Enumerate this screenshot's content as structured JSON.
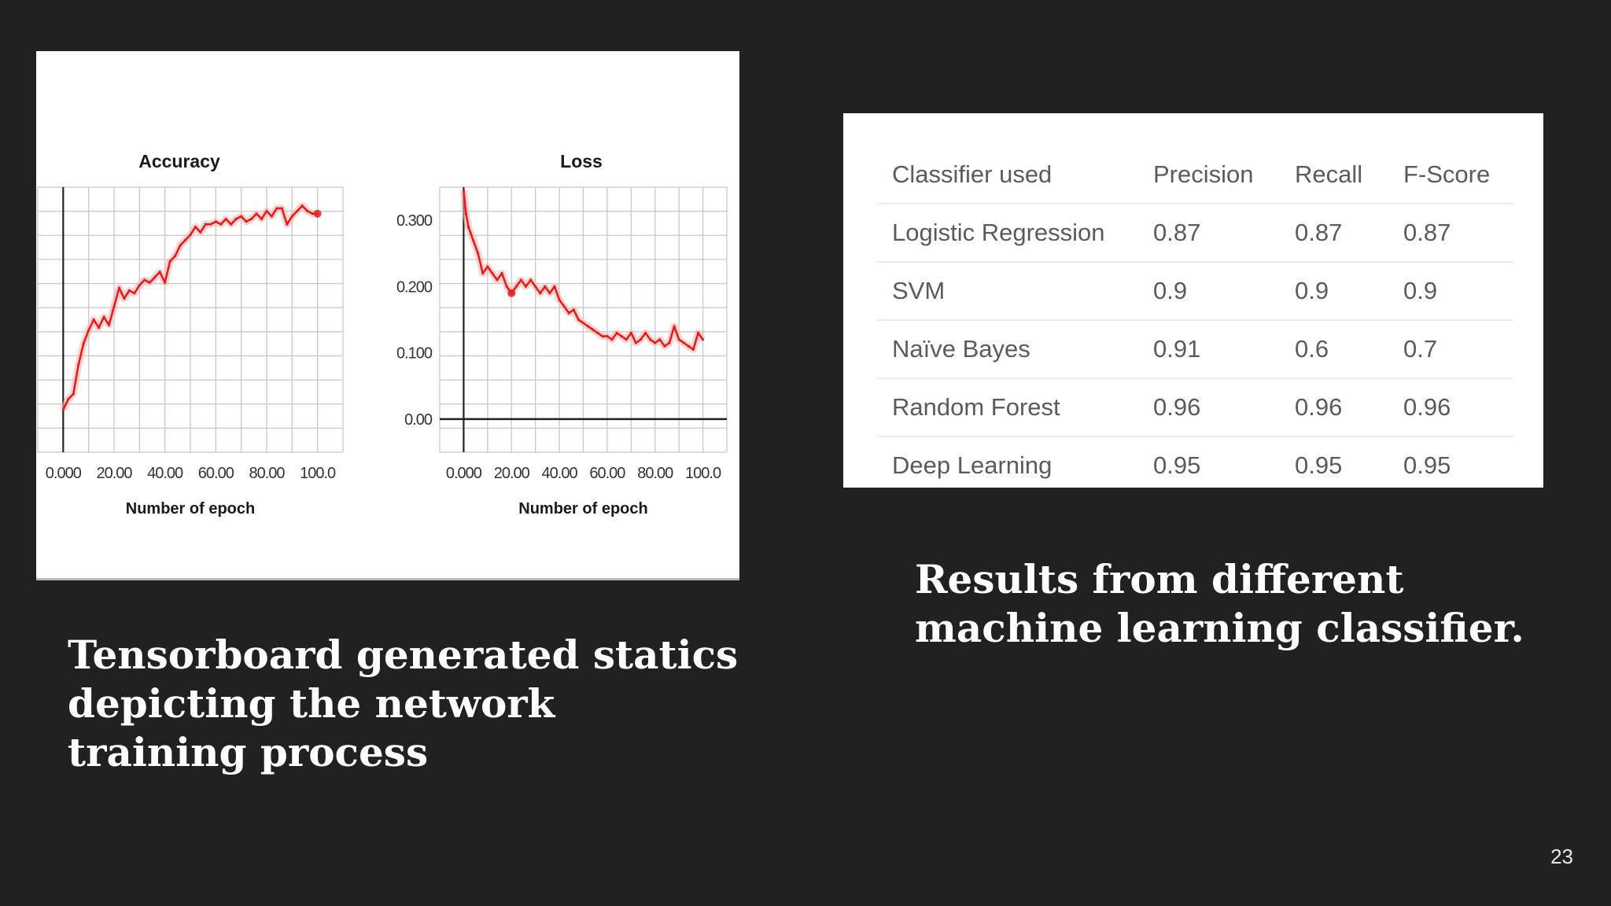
{
  "chart_data": [
    {
      "type": "line",
      "title": "Accuracy",
      "xlabel": "Number of epoch",
      "ylabel": "",
      "xticks": [
        "0.000",
        "20.00",
        "40.00",
        "60.00",
        "80.00",
        "100.0"
      ],
      "yticks": [],
      "xlim": [
        -10,
        110
      ],
      "ylim": [
        0,
        1
      ],
      "grid": true,
      "colors": {
        "line": "#e31e1e",
        "smooth": "#f5b8b0"
      },
      "series": [
        {
          "x": [
            0,
            2,
            4,
            6,
            8,
            10,
            12,
            14,
            16,
            18,
            20,
            22,
            24,
            26,
            28,
            30,
            32,
            34,
            36,
            38,
            40,
            42,
            44,
            46,
            48,
            50,
            52,
            54,
            56,
            58,
            60,
            62,
            64,
            66,
            68,
            70,
            72,
            74,
            76,
            78,
            80,
            82,
            84,
            86,
            88,
            90,
            92,
            94,
            96,
            98,
            100
          ],
          "y": [
            0.16,
            0.2,
            0.22,
            0.33,
            0.41,
            0.46,
            0.5,
            0.47,
            0.51,
            0.48,
            0.55,
            0.62,
            0.58,
            0.61,
            0.6,
            0.63,
            0.65,
            0.64,
            0.66,
            0.68,
            0.64,
            0.72,
            0.74,
            0.78,
            0.8,
            0.82,
            0.85,
            0.83,
            0.86,
            0.86,
            0.87,
            0.86,
            0.88,
            0.86,
            0.88,
            0.89,
            0.87,
            0.88,
            0.9,
            0.88,
            0.91,
            0.89,
            0.92,
            0.92,
            0.86,
            0.89,
            0.91,
            0.93,
            0.91,
            0.9,
            0.9
          ]
        }
      ]
    },
    {
      "type": "line",
      "title": "Loss",
      "xlabel": "Number of epoch",
      "ylabel": "",
      "xticks": [
        "0.000",
        "20.00",
        "40.00",
        "60.00",
        "80.00",
        "100.0"
      ],
      "yticks": [
        "0.00",
        "0.100",
        "0.200",
        "0.300"
      ],
      "xlim": [
        -10,
        110
      ],
      "ylim": [
        -0.05,
        0.35
      ],
      "grid": true,
      "colors": {
        "line": "#e31e1e",
        "smooth": "#f5b8b0"
      },
      "series": [
        {
          "x": [
            0,
            1,
            2,
            3,
            4,
            6,
            8,
            10,
            12,
            14,
            16,
            18,
            20,
            22,
            24,
            26,
            28,
            30,
            32,
            34,
            36,
            38,
            40,
            42,
            44,
            46,
            48,
            50,
            52,
            54,
            56,
            58,
            60,
            62,
            64,
            66,
            68,
            70,
            72,
            74,
            76,
            78,
            80,
            82,
            84,
            86,
            88,
            90,
            92,
            94,
            96,
            98,
            100
          ],
          "y": [
            0.345,
            0.31,
            0.29,
            0.28,
            0.27,
            0.25,
            0.22,
            0.23,
            0.22,
            0.21,
            0.22,
            0.2,
            0.19,
            0.2,
            0.21,
            0.2,
            0.21,
            0.2,
            0.19,
            0.2,
            0.19,
            0.2,
            0.18,
            0.17,
            0.16,
            0.165,
            0.15,
            0.145,
            0.14,
            0.135,
            0.13,
            0.125,
            0.125,
            0.12,
            0.13,
            0.125,
            0.12,
            0.13,
            0.115,
            0.12,
            0.13,
            0.12,
            0.115,
            0.12,
            0.11,
            0.115,
            0.14,
            0.12,
            0.115,
            0.11,
            0.105,
            0.13,
            0.12
          ]
        }
      ]
    }
  ],
  "table": {
    "headers": [
      "Classifier used",
      "Precision",
      "Recall",
      "F-Score"
    ],
    "rows": [
      [
        "Logistic Regression",
        "0.87",
        "0.87",
        "0.87"
      ],
      [
        "SVM",
        "0.9",
        "0.9",
        "0.9"
      ],
      [
        "Naïve Bayes",
        "0.91",
        "0.6",
        "0.7"
      ],
      [
        "Random Forest",
        "0.96",
        "0.96",
        "0.96"
      ],
      [
        "Deep Learning",
        "0.95",
        "0.95",
        "0.95"
      ]
    ]
  },
  "captions": {
    "left": "Tensorboard generated statics depicting the network training process",
    "right": "Results from different machine learning classifier."
  },
  "page_number": "23"
}
